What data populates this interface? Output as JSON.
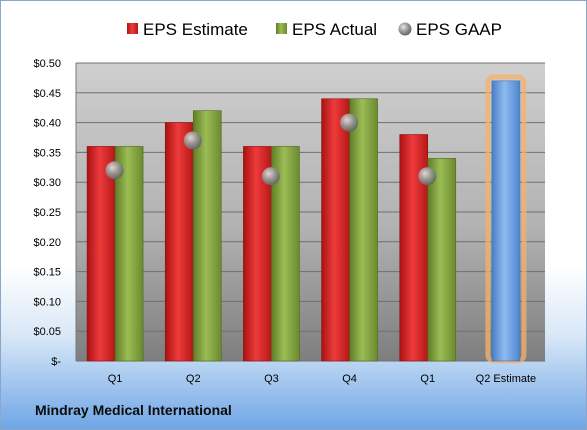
{
  "company": "Mindray Medical International",
  "colors": {
    "estimate": "#cc1f1f",
    "actual": "#7a9a35",
    "gaap": "#8a8a8a",
    "projected": "#5d93d8",
    "projected_glow": "#f6b26b"
  },
  "chart_data": {
    "type": "bar",
    "categories": [
      "Q1",
      "Q2",
      "Q3",
      "Q4",
      "Q1",
      "Q2 Estimate"
    ],
    "series": [
      {
        "name": "EPS Estimate",
        "values": [
          0.36,
          0.4,
          0.36,
          0.44,
          0.38,
          0.47
        ]
      },
      {
        "name": "EPS Actual",
        "values": [
          0.36,
          0.42,
          0.36,
          0.44,
          0.34,
          null
        ]
      },
      {
        "name": "EPS GAAP",
        "values": [
          0.32,
          0.37,
          0.31,
          0.4,
          0.31,
          null
        ]
      }
    ],
    "y_ticks": [
      "$-",
      "$0.05",
      "$0.10",
      "$0.15",
      "$0.20",
      "$0.25",
      "$0.30",
      "$0.35",
      "$0.40",
      "$0.45",
      "$0.50"
    ],
    "ylim": [
      0,
      0.5
    ],
    "grid": true,
    "legend_position": "top",
    "highlight_last_category": true
  }
}
